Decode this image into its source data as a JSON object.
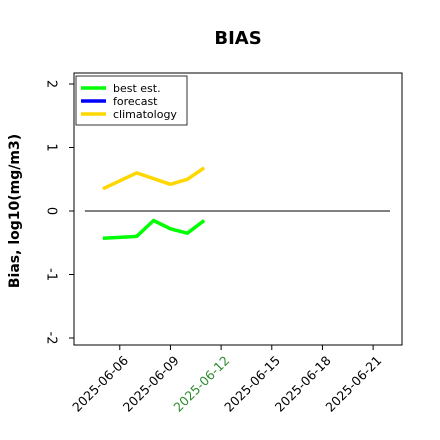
{
  "chart_data": {
    "type": "line",
    "title": "BIAS",
    "ylabel": "Bias, log10(mg/m3)",
    "xlabel": "",
    "ylim": [
      -2.0,
      2.0
    ],
    "yticks": [
      -2,
      -1,
      0,
      1,
      2
    ],
    "ytick_labels": [
      "-2",
      "-1",
      "0",
      "1",
      "2"
    ],
    "xlim": [
      "2025-06-04",
      "2025-06-22"
    ],
    "xticks": [
      "2025-06-06",
      "2025-06-09",
      "2025-06-12",
      "2025-06-15",
      "2025-06-18",
      "2025-06-21"
    ],
    "xtick_labels": [
      "2025-06-06",
      "2025-06-09",
      "2025-06-12",
      "2025-06-15",
      "2025-06-18",
      "2025-06-21"
    ],
    "highlight_xtick": "2025-06-12",
    "highlight_color": "#2e8b2e",
    "reference_line_y": 0,
    "grid": false,
    "legend_position": "top-left",
    "series": [
      {
        "name": "best est.",
        "color": "#00ff00",
        "x": [
          "2025-06-05",
          "2025-06-07",
          "2025-06-08",
          "2025-06-09",
          "2025-06-10",
          "2025-06-11"
        ],
        "values": [
          -0.43,
          -0.4,
          -0.15,
          -0.28,
          -0.35,
          -0.15
        ]
      },
      {
        "name": "forecast",
        "color": "#0000ff",
        "x": [],
        "values": []
      },
      {
        "name": "climatology",
        "color": "#ffd700",
        "x": [
          "2025-06-05",
          "2025-06-07",
          "2025-06-09",
          "2025-06-10",
          "2025-06-11"
        ],
        "values": [
          0.35,
          0.6,
          0.42,
          0.5,
          0.68
        ]
      }
    ]
  }
}
